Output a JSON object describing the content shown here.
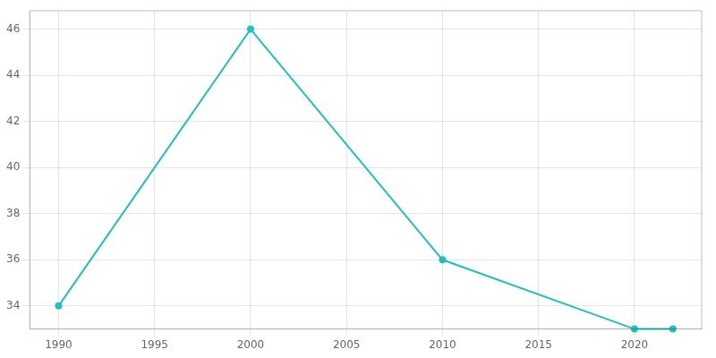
{
  "chart_data": {
    "type": "line",
    "x": [
      1990,
      2000,
      2010,
      2020,
      2022
    ],
    "values": [
      34,
      46,
      36,
      33,
      33
    ],
    "color": "#22BFBF",
    "marker": "circle",
    "xlim": [
      1988.5,
      2023.5
    ],
    "ylim": [
      33.0,
      46.8
    ],
    "xticks": [
      1990,
      1995,
      2000,
      2005,
      2010,
      2015,
      2020
    ],
    "yticks": [
      34,
      36,
      38,
      40,
      42,
      44,
      46
    ],
    "grid": true
  }
}
